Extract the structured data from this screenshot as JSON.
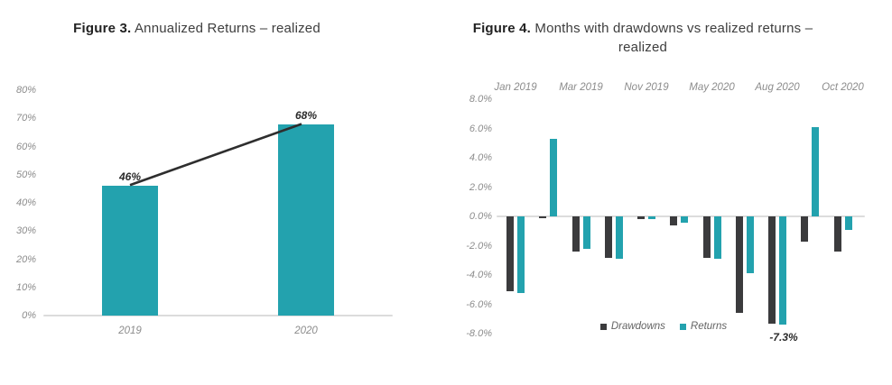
{
  "colors": {
    "teal": "#23a2ae",
    "dark": "#3b3b3d",
    "axis_line": "#dcdcdc",
    "tick_text": "#8c8c8c",
    "label_text": "#2b2b2b",
    "trend_line": "#2e2e2e"
  },
  "figure3": {
    "title_prefix": "Figure 3.",
    "title_rest": " Annualized Returns – realized"
  },
  "figure4": {
    "title_prefix": "Figure 4.",
    "title_line1_rest": "  Months with drawdowns vs realized returns –",
    "title_line2": "realized"
  },
  "chart_data": [
    {
      "type": "bar",
      "title": "Figure 3. Annualized Returns – realized",
      "categories": [
        "2019",
        "2020"
      ],
      "values": [
        46,
        68
      ],
      "data_labels": [
        "46%",
        "68%"
      ],
      "yticks": [
        "80%",
        "70%",
        "60%",
        "50%",
        "40%",
        "30%",
        "20%",
        "10%",
        "0%"
      ],
      "ylim": [
        0,
        80
      ],
      "xlabel": "",
      "ylabel": "",
      "grid": false,
      "bar_color": "#23a2ae",
      "trend_line": true
    },
    {
      "type": "bar",
      "title": "Figure 4. Months with drawdowns vs realized returns – realized",
      "categories": [
        "Jan 2019",
        "",
        "Mar 2019",
        "",
        "Nov 2019",
        "",
        "May 2020",
        "",
        "Aug 2020",
        "",
        "Oct 2020"
      ],
      "series": [
        {
          "name": "Drawdowns",
          "color": "#3b3b3d",
          "values": [
            -5.1,
            -0.1,
            -2.4,
            -2.8,
            -0.2,
            -0.6,
            -2.8,
            -6.6,
            -7.3,
            -1.7,
            -2.4
          ]
        },
        {
          "name": "Returns",
          "color": "#23a2ae",
          "values": [
            -5.2,
            5.3,
            -2.2,
            -2.9,
            -0.2,
            -0.4,
            -2.9,
            -3.9,
            -7.4,
            6.1,
            -0.9
          ]
        }
      ],
      "yticks": [
        "8.0%",
        "6.0%",
        "4.0%",
        "2.0%",
        "0.0%",
        "-2.0%",
        "-4.0%",
        "-6.0%",
        "-8.0%"
      ],
      "ylim": [
        -8,
        8
      ],
      "x_axis_position": "top",
      "grid": false,
      "legend": [
        "Drawdowns",
        "Returns"
      ],
      "legend_position": "bottom",
      "annotation": {
        "text": "-7.3%",
        "category_index": 8
      }
    }
  ]
}
